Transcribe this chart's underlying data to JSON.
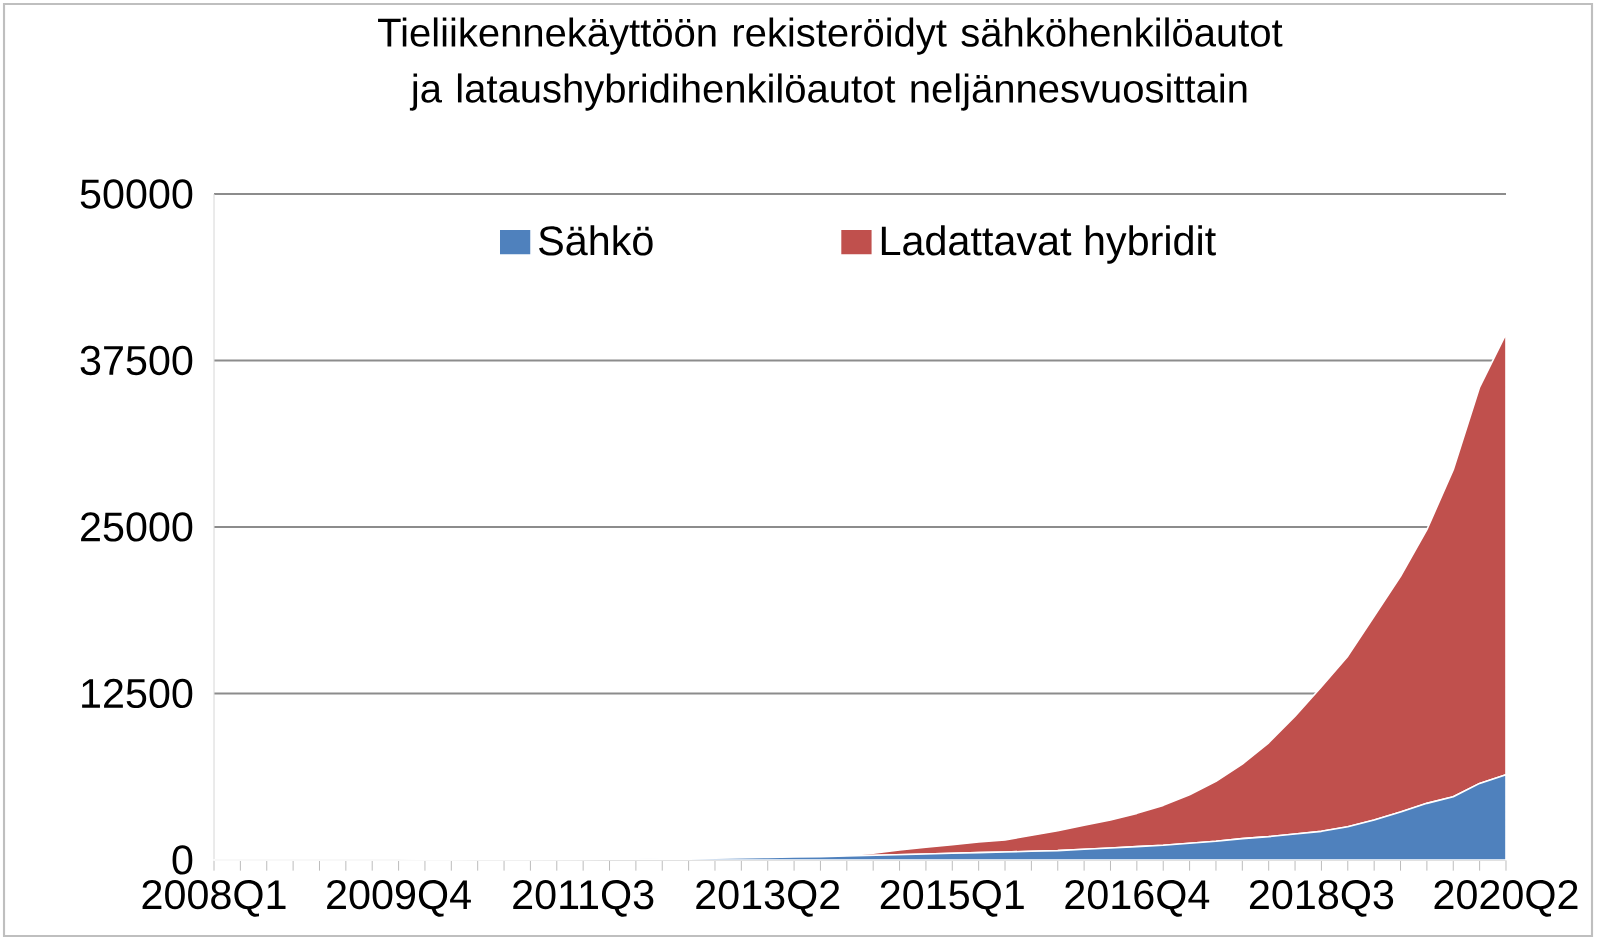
{
  "chart_data": {
    "type": "area",
    "title": "Tieliikennekäyttöön rekisteröidyt sähköhenkilöautot ja lataushybridihenkilöautot neljännesvuosittain",
    "categories": [
      "2008Q1",
      null,
      null,
      null,
      null,
      null,
      null,
      "2009Q4",
      null,
      null,
      null,
      null,
      null,
      null,
      "2011Q3",
      null,
      null,
      null,
      null,
      null,
      null,
      "2013Q2",
      null,
      null,
      null,
      null,
      null,
      null,
      "2015Q1",
      null,
      null,
      null,
      null,
      null,
      null,
      "2016Q4",
      null,
      null,
      null,
      null,
      null,
      null,
      "2018Q3",
      null,
      null,
      null,
      null,
      null,
      null,
      "2020Q2"
    ],
    "stacked": true,
    "series": [
      {
        "name": "Sähkö",
        "color": "#4f81bd",
        "values": [
          0,
          0,
          0,
          0,
          0,
          0,
          0,
          0,
          5,
          8,
          12,
          18,
          25,
          35,
          45,
          55,
          70,
          90,
          110,
          130,
          160,
          190,
          220,
          250,
          300,
          350,
          400,
          450,
          500,
          550,
          600,
          650,
          700,
          800,
          900,
          1000,
          1100,
          1250,
          1400,
          1600,
          1750,
          1950,
          2150,
          2500,
          3000,
          3600,
          4250,
          4750,
          5750,
          6400
        ]
      },
      {
        "name": "Ladattavat hybridit",
        "color": "#c0504d",
        "values": [
          0,
          0,
          0,
          0,
          0,
          0,
          0,
          0,
          0,
          0,
          0,
          0,
          0,
          0,
          0,
          0,
          5,
          8,
          10,
          15,
          20,
          25,
          30,
          40,
          50,
          150,
          350,
          500,
          650,
          800,
          900,
          1200,
          1500,
          1800,
          2100,
          2500,
          3000,
          3650,
          4500,
          5600,
          7050,
          8850,
          10850,
          12800,
          15300,
          17700,
          20550,
          24550,
          29750,
          33100
        ]
      }
    ],
    "ylim": [
      0,
      50000
    ],
    "yticks": [
      0,
      12500,
      25000,
      37500,
      50000
    ],
    "grid": "y",
    "legend": "top"
  }
}
